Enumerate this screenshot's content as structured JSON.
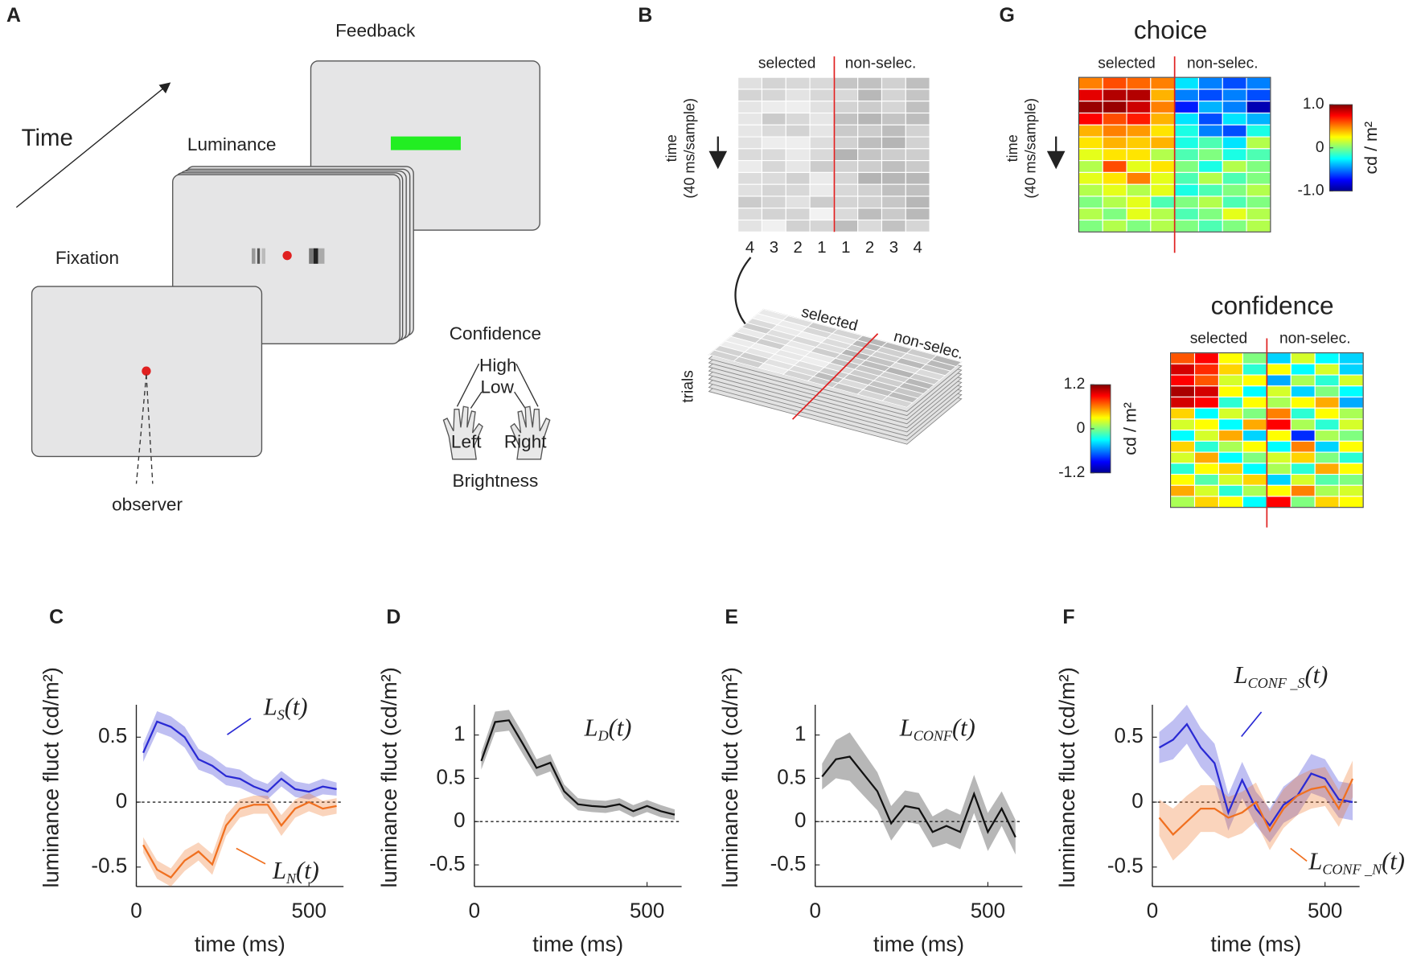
{
  "panel_labels": [
    "A",
    "B",
    "G",
    "C",
    "D",
    "E",
    "F"
  ],
  "panel_a": {
    "time": "Time",
    "screens": [
      "Fixation",
      "Luminance",
      "Feedback"
    ],
    "observer": "observer",
    "confidence": "Confidence",
    "high": "High",
    "low": "Low",
    "left": "Left",
    "right": "Right",
    "brightness": "Brightness"
  },
  "panel_b": {
    "selected": "selected",
    "non_selected": "non-selec.",
    "time_label": [
      "time",
      "(40 ms/sample)"
    ],
    "columns": [
      "4",
      "3",
      "2",
      "1",
      "1",
      "2",
      "3",
      "4"
    ],
    "trials": "trials"
  },
  "chart_data": [
    {
      "type": "heatmap",
      "title": "choice",
      "column_groups": [
        "selected",
        "non-selec."
      ],
      "y_label": [
        "time",
        "(40 ms/sample)"
      ],
      "colorbar": {
        "label": "cd / m²",
        "lim": [
          -1,
          1
        ],
        "ticks": [
          {
            "value": 1,
            "label": "1.0"
          },
          0,
          {
            "value": -1,
            "label": "-1.0"
          }
        ]
      },
      "values": [
        [
          0.5,
          0.6,
          0.55,
          0.5,
          -0.3,
          -0.5,
          -0.6,
          -0.5
        ],
        [
          0.8,
          0.9,
          0.9,
          0.4,
          -0.5,
          -0.6,
          -0.5,
          -0.6
        ],
        [
          0.95,
          0.95,
          0.85,
          0.5,
          -0.7,
          -0.4,
          -0.5,
          -0.9
        ],
        [
          0.75,
          0.6,
          0.7,
          0.4,
          -0.3,
          -0.6,
          -0.3,
          -0.4
        ],
        [
          0.4,
          0.5,
          0.45,
          0.3,
          -0.2,
          -0.5,
          -0.6,
          -0.2
        ],
        [
          0.3,
          0.4,
          0.35,
          0.4,
          -0.2,
          -0.1,
          -0.3,
          0.1
        ],
        [
          0.2,
          0.3,
          0.3,
          0.1,
          -0.1,
          0.0,
          -0.2,
          -0.1
        ],
        [
          0.1,
          0.6,
          0.2,
          0.3,
          0.0,
          -0.2,
          0.1,
          0.0
        ],
        [
          0.2,
          0.3,
          0.5,
          0.2,
          -0.1,
          0.1,
          -0.1,
          0.0
        ],
        [
          0.1,
          0.2,
          0.1,
          0.2,
          -0.2,
          -0.1,
          0.0,
          0.1
        ],
        [
          0.0,
          0.1,
          0.2,
          -0.1,
          0.0,
          0.1,
          -0.1,
          0.0
        ],
        [
          0.1,
          0.0,
          0.2,
          0.1,
          -0.1,
          0.0,
          0.2,
          0.1
        ],
        [
          0.0,
          0.1,
          0.0,
          0.1,
          0.0,
          -0.1,
          0.0,
          0.1
        ]
      ]
    },
    {
      "type": "heatmap",
      "title": "confidence",
      "column_groups": [
        "selected",
        "non-selec."
      ],
      "colorbar": {
        "label": "cd / m²",
        "lim": [
          -1.2,
          1.2
        ],
        "ticks": [
          1.2,
          0,
          -1.2
        ]
      },
      "values": [
        [
          0.7,
          0.9,
          0.3,
          0.0,
          -0.4,
          0.2,
          -0.3,
          -0.4
        ],
        [
          1.0,
          0.8,
          0.4,
          -0.2,
          0.3,
          -0.3,
          0.2,
          -0.4
        ],
        [
          0.9,
          0.7,
          0.2,
          0.3,
          -0.5,
          0.1,
          -0.2,
          0.2
        ],
        [
          1.1,
          1.0,
          0.3,
          -0.3,
          0.2,
          -0.4,
          0.0,
          -0.3
        ],
        [
          1.0,
          0.9,
          -0.2,
          0.3,
          0.1,
          0.3,
          0.5,
          -0.5
        ],
        [
          0.4,
          -0.3,
          0.2,
          0.0,
          0.6,
          -0.2,
          0.3,
          0.1
        ],
        [
          0.2,
          0.3,
          -0.3,
          0.5,
          0.9,
          0.1,
          -0.2,
          0.2
        ],
        [
          -0.3,
          0.2,
          0.5,
          -0.4,
          0.3,
          -0.8,
          0.1,
          0.0
        ],
        [
          0.4,
          -0.2,
          0.1,
          0.3,
          -0.3,
          0.6,
          -0.4,
          0.3
        ],
        [
          0.2,
          0.5,
          -0.3,
          0.0,
          0.2,
          0.4,
          0.0,
          -0.2
        ],
        [
          -0.2,
          0.3,
          0.4,
          -0.3,
          0.1,
          -0.2,
          0.5,
          0.3
        ],
        [
          0.3,
          -0.1,
          0.2,
          0.4,
          -0.4,
          0.2,
          -0.1,
          0.0
        ],
        [
          0.5,
          0.2,
          -0.2,
          0.1,
          0.3,
          0.6,
          0.1,
          0.2
        ],
        [
          0.1,
          0.4,
          0.3,
          -0.3,
          0.9,
          0.0,
          0.4,
          0.3
        ]
      ]
    },
    {
      "type": "line",
      "x_label": "time (ms)",
      "y_label": "luminance fluct (cd/m²)",
      "x": [
        20,
        60,
        100,
        140,
        180,
        220,
        260,
        300,
        340,
        380,
        420,
        460,
        500,
        540,
        580
      ],
      "xlim": [
        0,
        600
      ],
      "xticks": [
        0,
        500
      ],
      "ylim": [
        -0.65,
        0.75
      ],
      "yticks": [
        -0.5,
        0,
        0.5
      ],
      "reference_line": 0,
      "series": [
        {
          "color": "#2a2ad4",
          "values": [
            0.38,
            0.62,
            0.58,
            0.5,
            0.33,
            0.28,
            0.2,
            0.18,
            0.12,
            0.08,
            0.18,
            0.1,
            0.08,
            0.12,
            0.1
          ],
          "errors": [
            0.07,
            0.08,
            0.08,
            0.08,
            0.08,
            0.07,
            0.07,
            0.07,
            0.06,
            0.06,
            0.06,
            0.06,
            0.06,
            0.06,
            0.05
          ]
        },
        {
          "color": "#f07020",
          "values": [
            -0.33,
            -0.52,
            -0.58,
            -0.45,
            -0.38,
            -0.48,
            -0.18,
            -0.05,
            -0.02,
            -0.02,
            -0.18,
            -0.05,
            0.0,
            -0.05,
            -0.03
          ],
          "errors": [
            0.06,
            0.07,
            0.07,
            0.08,
            0.07,
            0.08,
            0.08,
            0.07,
            0.07,
            0.07,
            0.08,
            0.07,
            0.07,
            0.06,
            0.06
          ]
        }
      ],
      "annotations": [
        {
          "base": "L",
          "sub": "S",
          "tail": "(t)",
          "color": "#2a2ad4"
        },
        {
          "base": "L",
          "sub": "N",
          "tail": "(t)",
          "color": "#f07020"
        }
      ]
    },
    {
      "type": "line",
      "x_label": "time (ms)",
      "y_label": "luminance fluct (cd/m²)",
      "x": [
        20,
        60,
        100,
        140,
        180,
        220,
        260,
        300,
        340,
        380,
        420,
        460,
        500,
        540,
        580
      ],
      "xlim": [
        0,
        600
      ],
      "xticks": [
        0,
        500
      ],
      "ylim": [
        -0.75,
        1.35
      ],
      "yticks": [
        -0.5,
        0,
        0.5,
        1
      ],
      "reference_line": 0,
      "series": [
        {
          "color": "#111111",
          "values": [
            0.7,
            1.15,
            1.17,
            0.9,
            0.62,
            0.68,
            0.35,
            0.2,
            0.18,
            0.17,
            0.2,
            0.12,
            0.18,
            0.12,
            0.08
          ],
          "errors": [
            0.1,
            0.12,
            0.12,
            0.12,
            0.1,
            0.1,
            0.08,
            0.07,
            0.07,
            0.07,
            0.07,
            0.07,
            0.07,
            0.07,
            0.06
          ]
        }
      ],
      "annotations": [
        {
          "base": "L",
          "sub": "D",
          "tail": "(t)",
          "color": "#111111"
        }
      ]
    },
    {
      "type": "line",
      "x_label": "time (ms)",
      "y_label": "luminance fluct (cd/m²)",
      "x": [
        20,
        60,
        100,
        140,
        180,
        220,
        260,
        300,
        340,
        380,
        420,
        460,
        500,
        540,
        580
      ],
      "xlim": [
        0,
        600
      ],
      "xticks": [
        0,
        500
      ],
      "ylim": [
        -0.75,
        1.35
      ],
      "yticks": [
        -0.5,
        0,
        0.5,
        1
      ],
      "reference_line": 0,
      "series": [
        {
          "color": "#111111",
          "values": [
            0.52,
            0.72,
            0.75,
            0.55,
            0.35,
            -0.02,
            0.18,
            0.15,
            -0.12,
            -0.05,
            -0.12,
            0.32,
            -0.12,
            0.15,
            -0.18
          ],
          "errors": [
            0.15,
            0.22,
            0.28,
            0.25,
            0.22,
            0.2,
            0.18,
            0.18,
            0.18,
            0.2,
            0.2,
            0.22,
            0.22,
            0.2,
            0.2
          ]
        }
      ],
      "annotations": [
        {
          "base": "L",
          "sub": "CONF",
          "tail": "(t)",
          "color": "#111111"
        }
      ]
    },
    {
      "type": "line",
      "x_label": "time (ms)",
      "y_label": "luminance fluct (cd/m²)",
      "x": [
        20,
        60,
        100,
        140,
        180,
        220,
        260,
        300,
        340,
        380,
        420,
        460,
        500,
        540,
        580
      ],
      "xlim": [
        0,
        600
      ],
      "xticks": [
        0,
        500
      ],
      "ylim": [
        -0.65,
        0.75
      ],
      "yticks": [
        -0.5,
        0,
        0.5
      ],
      "reference_line": 0,
      "series": [
        {
          "color": "#2a2ad4",
          "values": [
            0.42,
            0.48,
            0.6,
            0.42,
            0.3,
            -0.08,
            0.17,
            -0.05,
            -0.18,
            -0.02,
            0.05,
            0.22,
            0.18,
            0.02,
            0.0
          ],
          "errors": [
            0.12,
            0.15,
            0.15,
            0.15,
            0.15,
            0.14,
            0.14,
            0.13,
            0.13,
            0.14,
            0.15,
            0.15,
            0.15,
            0.14,
            0.14
          ]
        },
        {
          "color": "#f07020",
          "values": [
            -0.12,
            -0.25,
            -0.15,
            -0.05,
            -0.05,
            -0.12,
            -0.08,
            0.0,
            -0.22,
            -0.05,
            0.05,
            0.1,
            0.12,
            -0.05,
            0.18
          ],
          "errors": [
            0.14,
            0.2,
            0.2,
            0.18,
            0.18,
            0.16,
            0.16,
            0.15,
            0.15,
            0.15,
            0.15,
            0.15,
            0.15,
            0.14,
            0.14
          ]
        }
      ],
      "annotations": [
        {
          "base": "L",
          "sub": "CONF _S",
          "tail": "(t)",
          "color": "#2a2ad4"
        },
        {
          "base": "L",
          "sub": "CONF _N",
          "tail": "(t)",
          "color": "#f07020"
        }
      ]
    }
  ]
}
